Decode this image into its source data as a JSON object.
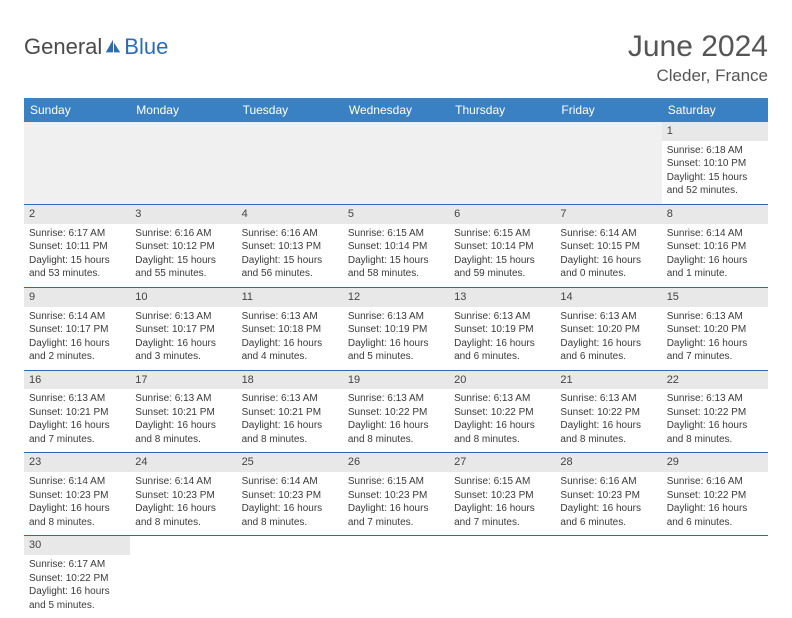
{
  "brand": {
    "part1": "General",
    "part2": "Blue"
  },
  "title": "June 2024",
  "location": "Cleder, France",
  "colors": {
    "header_bg": "#3a81c4",
    "border": "#2a6db3",
    "daynum_bg": "#e8e8e8",
    "empty_bg": "#f0f0f0",
    "text": "#333333",
    "title_text": "#555555"
  },
  "weekdays": [
    "Sunday",
    "Monday",
    "Tuesday",
    "Wednesday",
    "Thursday",
    "Friday",
    "Saturday"
  ],
  "weeks": [
    [
      null,
      null,
      null,
      null,
      null,
      null,
      {
        "d": "1",
        "sr": "6:18 AM",
        "ss": "10:10 PM",
        "dl": "15 hours and 52 minutes."
      }
    ],
    [
      {
        "d": "2",
        "sr": "6:17 AM",
        "ss": "10:11 PM",
        "dl": "15 hours and 53 minutes."
      },
      {
        "d": "3",
        "sr": "6:16 AM",
        "ss": "10:12 PM",
        "dl": "15 hours and 55 minutes."
      },
      {
        "d": "4",
        "sr": "6:16 AM",
        "ss": "10:13 PM",
        "dl": "15 hours and 56 minutes."
      },
      {
        "d": "5",
        "sr": "6:15 AM",
        "ss": "10:14 PM",
        "dl": "15 hours and 58 minutes."
      },
      {
        "d": "6",
        "sr": "6:15 AM",
        "ss": "10:14 PM",
        "dl": "15 hours and 59 minutes."
      },
      {
        "d": "7",
        "sr": "6:14 AM",
        "ss": "10:15 PM",
        "dl": "16 hours and 0 minutes."
      },
      {
        "d": "8",
        "sr": "6:14 AM",
        "ss": "10:16 PM",
        "dl": "16 hours and 1 minute."
      }
    ],
    [
      {
        "d": "9",
        "sr": "6:14 AM",
        "ss": "10:17 PM",
        "dl": "16 hours and 2 minutes."
      },
      {
        "d": "10",
        "sr": "6:13 AM",
        "ss": "10:17 PM",
        "dl": "16 hours and 3 minutes."
      },
      {
        "d": "11",
        "sr": "6:13 AM",
        "ss": "10:18 PM",
        "dl": "16 hours and 4 minutes."
      },
      {
        "d": "12",
        "sr": "6:13 AM",
        "ss": "10:19 PM",
        "dl": "16 hours and 5 minutes."
      },
      {
        "d": "13",
        "sr": "6:13 AM",
        "ss": "10:19 PM",
        "dl": "16 hours and 6 minutes."
      },
      {
        "d": "14",
        "sr": "6:13 AM",
        "ss": "10:20 PM",
        "dl": "16 hours and 6 minutes."
      },
      {
        "d": "15",
        "sr": "6:13 AM",
        "ss": "10:20 PM",
        "dl": "16 hours and 7 minutes."
      }
    ],
    [
      {
        "d": "16",
        "sr": "6:13 AM",
        "ss": "10:21 PM",
        "dl": "16 hours and 7 minutes."
      },
      {
        "d": "17",
        "sr": "6:13 AM",
        "ss": "10:21 PM",
        "dl": "16 hours and 8 minutes."
      },
      {
        "d": "18",
        "sr": "6:13 AM",
        "ss": "10:21 PM",
        "dl": "16 hours and 8 minutes."
      },
      {
        "d": "19",
        "sr": "6:13 AM",
        "ss": "10:22 PM",
        "dl": "16 hours and 8 minutes."
      },
      {
        "d": "20",
        "sr": "6:13 AM",
        "ss": "10:22 PM",
        "dl": "16 hours and 8 minutes."
      },
      {
        "d": "21",
        "sr": "6:13 AM",
        "ss": "10:22 PM",
        "dl": "16 hours and 8 minutes."
      },
      {
        "d": "22",
        "sr": "6:13 AM",
        "ss": "10:22 PM",
        "dl": "16 hours and 8 minutes."
      }
    ],
    [
      {
        "d": "23",
        "sr": "6:14 AM",
        "ss": "10:23 PM",
        "dl": "16 hours and 8 minutes."
      },
      {
        "d": "24",
        "sr": "6:14 AM",
        "ss": "10:23 PM",
        "dl": "16 hours and 8 minutes."
      },
      {
        "d": "25",
        "sr": "6:14 AM",
        "ss": "10:23 PM",
        "dl": "16 hours and 8 minutes."
      },
      {
        "d": "26",
        "sr": "6:15 AM",
        "ss": "10:23 PM",
        "dl": "16 hours and 7 minutes."
      },
      {
        "d": "27",
        "sr": "6:15 AM",
        "ss": "10:23 PM",
        "dl": "16 hours and 7 minutes."
      },
      {
        "d": "28",
        "sr": "6:16 AM",
        "ss": "10:23 PM",
        "dl": "16 hours and 6 minutes."
      },
      {
        "d": "29",
        "sr": "6:16 AM",
        "ss": "10:22 PM",
        "dl": "16 hours and 6 minutes."
      }
    ],
    [
      {
        "d": "30",
        "sr": "6:17 AM",
        "ss": "10:22 PM",
        "dl": "16 hours and 5 minutes."
      },
      null,
      null,
      null,
      null,
      null,
      null
    ]
  ],
  "labels": {
    "sunrise": "Sunrise:",
    "sunset": "Sunset:",
    "daylight": "Daylight:"
  }
}
